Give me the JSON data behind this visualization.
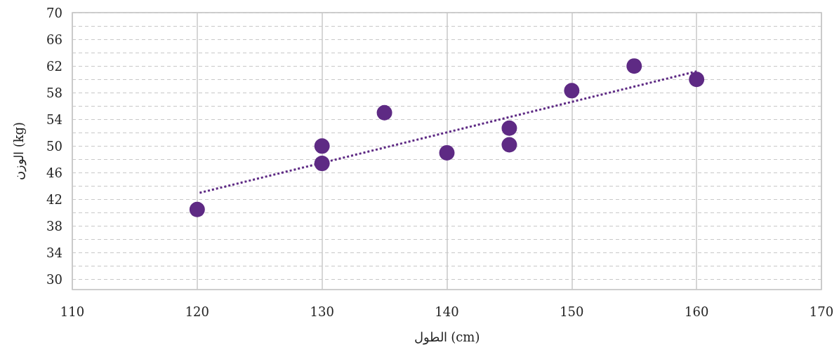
{
  "chart_data": {
    "type": "scatter",
    "xlabel": "الطول (cm)",
    "ylabel": "الوزن (kg)",
    "xlim": [
      110,
      170
    ],
    "xticks": [
      110,
      120,
      130,
      140,
      150,
      160,
      170
    ],
    "ylim": [
      28.5,
      70
    ],
    "yticks": [
      30,
      {
        "value": 32,
        "label": null
      },
      34,
      {
        "value": 36,
        "label": null
      },
      38,
      {
        "value": 40,
        "label": null
      },
      42,
      {
        "value": 44,
        "label": null
      },
      46,
      {
        "value": 48,
        "label": null
      },
      50,
      {
        "value": 52,
        "label": null
      },
      54,
      {
        "value": 56,
        "label": null
      },
      58,
      {
        "value": 60,
        "label": null
      },
      62,
      {
        "value": 64,
        "label": null
      },
      66,
      {
        "value": 68,
        "label": null
      },
      70
    ],
    "grid": true,
    "marker": "circle",
    "series": [
      {
        "color": "#5e2a84",
        "x": [
          120,
          130,
          130,
          135,
          140,
          145,
          145,
          150,
          155,
          160
        ],
        "values": [
          40.5,
          50,
          47.4,
          55,
          49,
          52.7,
          50.2,
          58.3,
          62,
          60
        ]
      },
      {
        "type": "line",
        "color": "#5e2a84",
        "marker": "none",
        "line_style": "dotted",
        "x": [
          120.2,
          160
        ],
        "values": [
          43,
          61.2
        ]
      }
    ]
  }
}
